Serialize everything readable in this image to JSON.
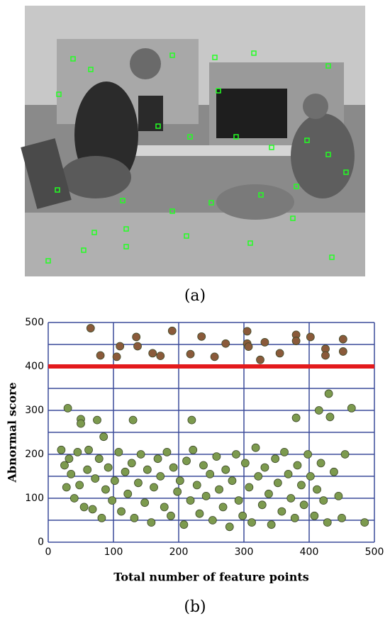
{
  "caption_a": "(a)",
  "caption_b": "(b)",
  "chart_data": {
    "type": "scatter",
    "xlabel": "Total number of feature points",
    "ylabel": "Abnormal score",
    "xlim": [
      0,
      500
    ],
    "ylim": [
      0,
      500
    ],
    "xticks": [
      0,
      100,
      200,
      300,
      400,
      500
    ],
    "yticks": [
      0,
      100,
      200,
      300,
      400,
      500
    ],
    "xgrid": [
      100,
      200,
      300,
      400,
      500
    ],
    "ygrid": [
      50,
      100,
      150,
      200,
      250,
      300,
      350,
      400,
      450,
      500
    ],
    "grid_color": "#3b4b9a",
    "threshold": 400,
    "threshold_color": "#e31a1c",
    "series": [
      {
        "color": "#8a5a3a",
        "x": [
          65,
          80,
          105,
          110,
          135,
          137,
          160,
          172,
          190,
          218,
          235,
          255,
          272,
          305,
          305,
          307,
          325,
          332,
          355,
          380,
          380,
          402,
          425,
          425,
          452,
          452
        ],
        "y": [
          487,
          425,
          422,
          446,
          467,
          446,
          430,
          424,
          481,
          428,
          468,
          422,
          452,
          480,
          452,
          445,
          415,
          455,
          430,
          472,
          458,
          467,
          440,
          425,
          462,
          434
        ]
      },
      {
        "color": "#7c9a4e",
        "x": [
          30,
          50,
          50,
          75,
          85,
          130,
          220,
          380,
          415,
          430,
          432,
          465,
          20,
          25,
          28,
          32,
          35,
          40,
          45,
          48,
          55,
          60,
          62,
          68,
          72,
          78,
          82,
          88,
          92,
          98,
          102,
          108,
          112,
          118,
          122,
          128,
          132,
          138,
          142,
          148,
          152,
          158,
          162,
          168,
          172,
          178,
          182,
          188,
          192,
          198,
          202,
          208,
          212,
          218,
          222,
          228,
          232,
          238,
          242,
          248,
          252,
          258,
          262,
          268,
          272,
          278,
          282,
          288,
          292,
          298,
          302,
          308,
          312,
          318,
          322,
          328,
          332,
          338,
          342,
          348,
          352,
          358,
          362,
          368,
          372,
          378,
          382,
          388,
          392,
          398,
          402,
          408,
          412,
          418,
          422,
          428,
          438,
          445,
          450,
          455,
          485
        ],
        "y": [
          305,
          280,
          270,
          278,
          240,
          278,
          278,
          283,
          300,
          338,
          285,
          305,
          210,
          175,
          125,
          190,
          155,
          100,
          205,
          130,
          80,
          165,
          210,
          75,
          145,
          190,
          55,
          120,
          170,
          95,
          140,
          205,
          70,
          160,
          110,
          180,
          55,
          135,
          200,
          90,
          165,
          45,
          125,
          190,
          150,
          80,
          205,
          60,
          170,
          115,
          140,
          40,
          185,
          95,
          210,
          130,
          65,
          175,
          105,
          155,
          50,
          195,
          120,
          80,
          165,
          35,
          140,
          200,
          95,
          60,
          180,
          125,
          45,
          215,
          150,
          85,
          170,
          110,
          40,
          190,
          135,
          70,
          205,
          155,
          100,
          55,
          175,
          130,
          85,
          200,
          150,
          60,
          120,
          180,
          95,
          45,
          160,
          105,
          55,
          200,
          45
        ]
      }
    ]
  }
}
